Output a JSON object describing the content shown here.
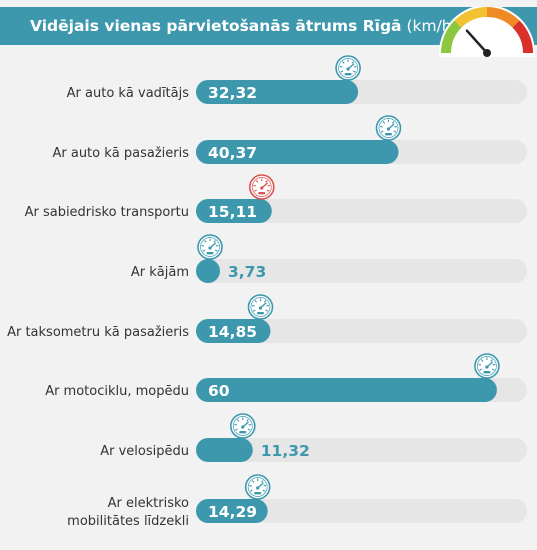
{
  "header": {
    "title_main": "Vidējais vienas pārvietošanās ātrums Rīgā",
    "title_unit": "(km/h)"
  },
  "colors": {
    "header_bg": "#3d98ad",
    "bar": "#3d98ad",
    "track": "#e6e6e6",
    "icon_normal": "#3d98ad",
    "icon_highlight": "#d9534f",
    "gauge_green": "#8dc63f",
    "gauge_yellow": "#f2c230",
    "gauge_orange": "#f08a24",
    "gauge_red": "#d9302a"
  },
  "chart_data": {
    "type": "bar",
    "orientation": "horizontal",
    "categories": [
      "Ar auto kā vadītājs",
      "Ar auto kā pasažieris",
      "Ar sabiedrisko transportu",
      "Ar kājām",
      "Ar taksometru kā pasažieris",
      "Ar motociklu, mopēdu",
      "Ar velosipēdu",
      "Ar elektrisko mobilitātes līdzekli"
    ],
    "category_lines": [
      [
        "Ar auto kā vadītājs"
      ],
      [
        "Ar auto kā pasažieris"
      ],
      [
        "Ar sabiedrisko transportu"
      ],
      [
        "Ar kājām"
      ],
      [
        "Ar taksometru kā pasažieris"
      ],
      [
        "Ar motociklu, mopēdu"
      ],
      [
        "Ar velosipēdu"
      ],
      [
        "Ar elektrisko",
        "mobilitātes līdzekli"
      ]
    ],
    "values": [
      32.32,
      40.37,
      15.11,
      3.73,
      14.85,
      60,
      11.32,
      14.29
    ],
    "value_labels": [
      "32,32",
      "40,37",
      "15,11",
      "3,73",
      "14,85",
      "60",
      "11,32",
      "14,29"
    ],
    "highlight_index": 2,
    "xlim": [
      0,
      66
    ]
  }
}
